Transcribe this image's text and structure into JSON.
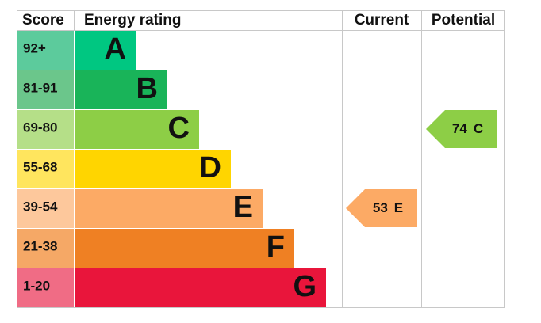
{
  "header": {
    "score": "Score",
    "rating": "Energy rating",
    "current": "Current",
    "potential": "Potential"
  },
  "bands": [
    {
      "score": "92+",
      "letter": "A",
      "color": "#00c781",
      "score_color": "#5ccb9c"
    },
    {
      "score": "81-91",
      "letter": "B",
      "color": "#19b459",
      "score_color": "#6bc68b"
    },
    {
      "score": "69-80",
      "letter": "C",
      "color": "#8dce46",
      "score_color": "#b5df88"
    },
    {
      "score": "55-68",
      "letter": "D",
      "color": "#ffd500",
      "score_color": "#ffe55e"
    },
    {
      "score": "39-54",
      "letter": "E",
      "color": "#fcaa65",
      "score_color": "#fdc89c"
    },
    {
      "score": "21-38",
      "letter": "F",
      "color": "#ef8023",
      "score_color": "#f5a866"
    },
    {
      "score": "1-20",
      "letter": "G",
      "color": "#e9153b",
      "score_color": "#f06c85"
    }
  ],
  "current": {
    "value": 53,
    "letter": "E"
  },
  "potential": {
    "value": 74,
    "letter": "C"
  }
}
